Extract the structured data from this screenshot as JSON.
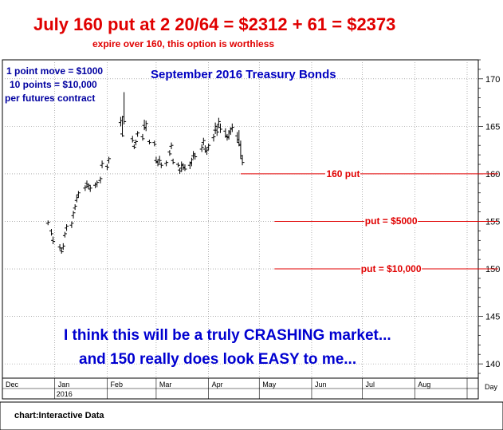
{
  "headline": "July 160 put at 2 20/64 = $2312 + 61 = $2373",
  "subheadline": "expire over 160, this option is worthless",
  "notes": {
    "line1": "1 point move = $1000",
    "line2": "10 points = $10,000",
    "line3": "per futures contract"
  },
  "commentary": {
    "line1": "I think this will be a truly CRASHING market...",
    "line2": "and 150 really does look EASY to me..."
  },
  "credit": "chart:Interactive Data",
  "colors": {
    "annotation_red": "#e00000",
    "annotation_blue": "#0000c0",
    "bars": "#000000",
    "grid": "#808080"
  },
  "chart_data": {
    "type": "ohlc",
    "title": "September 2016 Treasury Bonds",
    "x_axis": {
      "tick_labels": [
        "Dec",
        "Jan",
        "Feb",
        "Mar",
        "Apr",
        "May",
        "Jun",
        "Jul",
        "Aug"
      ],
      "unit_label": "Day",
      "year_label": "2016"
    },
    "y_axis": {
      "range": [
        138.5,
        172
      ],
      "ticks": [
        140,
        145,
        150,
        155,
        160,
        165,
        170
      ],
      "position": "right"
    },
    "grid": "dotted",
    "levels": [
      {
        "value": 160,
        "label": "160 put",
        "start": "2016-04-20"
      },
      {
        "value": 155,
        "label": "put = $5000",
        "start": "2016-05-10"
      },
      {
        "value": 150,
        "label": "put = $10,000",
        "start": "2016-05-10"
      }
    ],
    "bars": [
      {
        "date": "2015-12-28",
        "open": 154.8,
        "high": 155.1,
        "low": 154.6,
        "close": 154.9
      },
      {
        "date": "2015-12-30",
        "open": 154.0,
        "high": 154.2,
        "low": 153.5,
        "close": 153.7
      },
      {
        "date": "2015-12-31",
        "open": 153.0,
        "high": 153.4,
        "low": 152.6,
        "close": 152.9
      },
      {
        "date": "2016-01-04",
        "open": 152.3,
        "high": 152.6,
        "low": 152.0,
        "close": 152.2
      },
      {
        "date": "2016-01-05",
        "open": 151.9,
        "high": 152.2,
        "low": 151.6,
        "close": 151.8
      },
      {
        "date": "2016-01-06",
        "open": 152.2,
        "high": 152.7,
        "low": 152.0,
        "close": 152.4
      },
      {
        "date": "2016-01-07",
        "open": 153.5,
        "high": 153.9,
        "low": 153.3,
        "close": 153.7
      },
      {
        "date": "2016-01-08",
        "open": 154.3,
        "high": 154.7,
        "low": 154.0,
        "close": 154.5
      },
      {
        "date": "2016-01-11",
        "open": 154.6,
        "high": 155.0,
        "low": 154.3,
        "close": 154.8
      },
      {
        "date": "2016-01-12",
        "open": 155.6,
        "high": 156.1,
        "low": 155.3,
        "close": 155.9
      },
      {
        "date": "2016-01-13",
        "open": 156.4,
        "high": 156.8,
        "low": 156.2,
        "close": 156.6
      },
      {
        "date": "2016-01-14",
        "open": 157.2,
        "high": 157.8,
        "low": 157.0,
        "close": 157.5
      },
      {
        "date": "2016-01-15",
        "open": 157.8,
        "high": 158.2,
        "low": 157.5,
        "close": 158.0
      },
      {
        "date": "2016-01-19",
        "open": 158.5,
        "high": 158.8,
        "low": 158.2,
        "close": 158.6
      },
      {
        "date": "2016-01-20",
        "open": 159.0,
        "high": 159.3,
        "low": 158.5,
        "close": 158.9
      },
      {
        "date": "2016-01-21",
        "open": 158.7,
        "high": 159.0,
        "low": 158.4,
        "close": 158.8
      },
      {
        "date": "2016-01-22",
        "open": 158.4,
        "high": 158.8,
        "low": 158.1,
        "close": 158.5
      },
      {
        "date": "2016-01-25",
        "open": 158.8,
        "high": 159.1,
        "low": 158.5,
        "close": 158.9
      },
      {
        "date": "2016-01-26",
        "open": 158.9,
        "high": 159.3,
        "low": 158.6,
        "close": 159.1
      },
      {
        "date": "2016-01-28",
        "open": 159.3,
        "high": 159.7,
        "low": 159.0,
        "close": 159.5
      },
      {
        "date": "2016-01-29",
        "open": 160.9,
        "high": 161.4,
        "low": 160.6,
        "close": 161.1
      },
      {
        "date": "2016-02-01",
        "open": 160.8,
        "high": 161.0,
        "low": 160.4,
        "close": 160.7
      },
      {
        "date": "2016-02-02",
        "open": 161.4,
        "high": 161.8,
        "low": 161.1,
        "close": 161.6
      },
      {
        "date": "2016-02-09",
        "open": 165.4,
        "high": 166.0,
        "low": 165.0,
        "close": 165.6
      },
      {
        "date": "2016-02-10",
        "open": 164.2,
        "high": 166.1,
        "low": 163.9,
        "close": 164.0
      },
      {
        "date": "2016-02-11",
        "open": 166.0,
        "high": 168.6,
        "low": 165.2,
        "close": 165.5
      },
      {
        "date": "2016-02-16",
        "open": 163.7,
        "high": 164.0,
        "low": 163.3,
        "close": 163.5
      },
      {
        "date": "2016-02-17",
        "open": 162.9,
        "high": 163.1,
        "low": 162.6,
        "close": 162.8
      },
      {
        "date": "2016-02-18",
        "open": 163.3,
        "high": 163.6,
        "low": 163.0,
        "close": 163.4
      },
      {
        "date": "2016-02-19",
        "open": 164.2,
        "high": 164.5,
        "low": 163.9,
        "close": 164.3
      },
      {
        "date": "2016-02-22",
        "open": 163.9,
        "high": 164.2,
        "low": 163.5,
        "close": 163.7
      },
      {
        "date": "2016-02-23",
        "open": 165.1,
        "high": 165.7,
        "low": 164.6,
        "close": 164.9
      },
      {
        "date": "2016-02-24",
        "open": 164.8,
        "high": 165.6,
        "low": 164.5,
        "close": 165.3
      },
      {
        "date": "2016-02-26",
        "open": 163.4,
        "high": 163.6,
        "low": 163.1,
        "close": 163.3
      },
      {
        "date": "2016-02-29",
        "open": 163.3,
        "high": 163.5,
        "low": 162.9,
        "close": 163.1
      },
      {
        "date": "2016-03-01",
        "open": 161.4,
        "high": 161.8,
        "low": 161.1,
        "close": 161.3
      },
      {
        "date": "2016-03-02",
        "open": 161.2,
        "high": 161.5,
        "low": 160.8,
        "close": 161.0
      },
      {
        "date": "2016-03-03",
        "open": 161.5,
        "high": 161.9,
        "low": 161.1,
        "close": 161.4
      },
      {
        "date": "2016-03-04",
        "open": 161.0,
        "high": 161.2,
        "low": 160.6,
        "close": 160.9
      },
      {
        "date": "2016-03-07",
        "open": 161.1,
        "high": 161.4,
        "low": 160.8,
        "close": 161.2
      },
      {
        "date": "2016-03-09",
        "open": 162.3,
        "high": 162.5,
        "low": 161.9,
        "close": 162.1
      },
      {
        "date": "2016-03-10",
        "open": 162.9,
        "high": 163.3,
        "low": 162.6,
        "close": 163.0
      },
      {
        "date": "2016-03-11",
        "open": 161.4,
        "high": 161.6,
        "low": 161.0,
        "close": 161.2
      },
      {
        "date": "2016-03-14",
        "open": 161.0,
        "high": 161.2,
        "low": 160.7,
        "close": 160.9
      },
      {
        "date": "2016-03-15",
        "open": 160.4,
        "high": 160.6,
        "low": 160.0,
        "close": 160.3
      },
      {
        "date": "2016-03-16",
        "open": 160.6,
        "high": 161.3,
        "low": 160.2,
        "close": 161.0
      },
      {
        "date": "2016-03-17",
        "open": 160.9,
        "high": 161.1,
        "low": 160.4,
        "close": 160.7
      },
      {
        "date": "2016-03-18",
        "open": 160.6,
        "high": 161.0,
        "low": 160.3,
        "close": 160.5
      },
      {
        "date": "2016-03-21",
        "open": 160.9,
        "high": 161.3,
        "low": 160.5,
        "close": 161.1
      },
      {
        "date": "2016-03-22",
        "open": 161.2,
        "high": 161.7,
        "low": 160.8,
        "close": 161.5
      },
      {
        "date": "2016-03-23",
        "open": 161.9,
        "high": 162.4,
        "low": 161.6,
        "close": 162.1
      },
      {
        "date": "2016-03-24",
        "open": 161.9,
        "high": 162.2,
        "low": 161.5,
        "close": 161.8
      },
      {
        "date": "2016-03-28",
        "open": 162.6,
        "high": 163.1,
        "low": 162.3,
        "close": 162.8
      },
      {
        "date": "2016-03-29",
        "open": 163.3,
        "high": 163.8,
        "low": 163.0,
        "close": 163.5
      },
      {
        "date": "2016-03-30",
        "open": 162.6,
        "high": 163.0,
        "low": 162.2,
        "close": 162.4
      },
      {
        "date": "2016-03-31",
        "open": 162.4,
        "high": 162.8,
        "low": 162.0,
        "close": 162.5
      },
      {
        "date": "2016-04-01",
        "open": 162.8,
        "high": 163.2,
        "low": 162.5,
        "close": 163.0
      },
      {
        "date": "2016-04-04",
        "open": 163.8,
        "high": 164.2,
        "low": 163.4,
        "close": 163.9
      },
      {
        "date": "2016-04-05",
        "open": 164.6,
        "high": 165.4,
        "low": 164.2,
        "close": 165.0
      },
      {
        "date": "2016-04-06",
        "open": 164.6,
        "high": 165.1,
        "low": 164.0,
        "close": 164.4
      },
      {
        "date": "2016-04-07",
        "open": 165.2,
        "high": 165.9,
        "low": 164.8,
        "close": 165.5
      },
      {
        "date": "2016-04-08",
        "open": 164.9,
        "high": 165.3,
        "low": 164.3,
        "close": 164.7
      },
      {
        "date": "2016-04-11",
        "open": 164.5,
        "high": 164.8,
        "low": 163.8,
        "close": 164.0
      },
      {
        "date": "2016-04-12",
        "open": 163.9,
        "high": 164.2,
        "low": 163.5,
        "close": 163.8
      },
      {
        "date": "2016-04-13",
        "open": 163.9,
        "high": 164.6,
        "low": 163.6,
        "close": 164.3
      },
      {
        "date": "2016-04-14",
        "open": 164.5,
        "high": 164.9,
        "low": 164.1,
        "close": 164.7
      },
      {
        "date": "2016-04-15",
        "open": 164.8,
        "high": 165.3,
        "low": 164.4,
        "close": 164.9
      },
      {
        "date": "2016-04-18",
        "open": 164.0,
        "high": 164.4,
        "low": 163.3,
        "close": 163.6
      },
      {
        "date": "2016-04-19",
        "open": 163.3,
        "high": 164.6,
        "low": 162.9,
        "close": 163.1
      },
      {
        "date": "2016-04-20",
        "open": 163.0,
        "high": 163.5,
        "low": 161.6,
        "close": 161.9
      },
      {
        "date": "2016-04-21",
        "open": 161.6,
        "high": 162.0,
        "low": 160.9,
        "close": 161.2
      }
    ]
  }
}
